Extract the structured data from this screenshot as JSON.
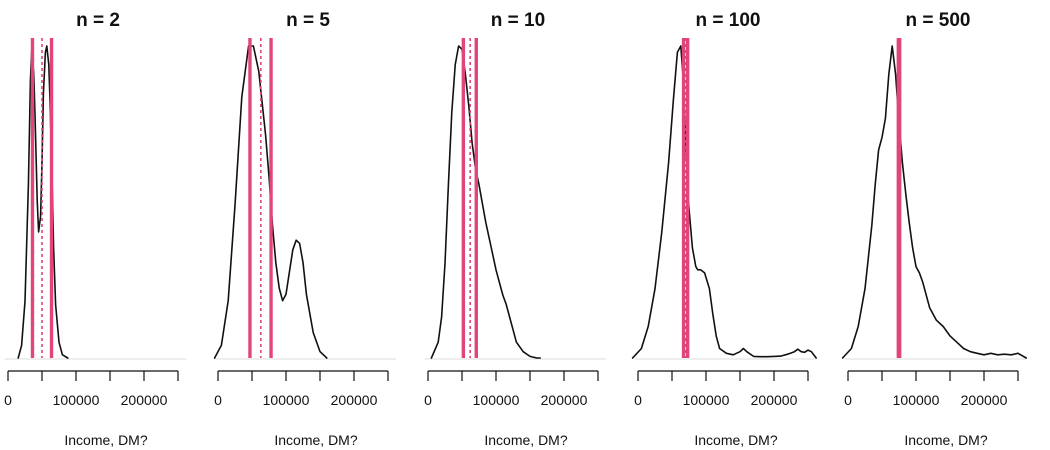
{
  "colors": {
    "interval": "#e0457b",
    "mean": "#e0457b",
    "curve": "#111111"
  },
  "chart_data": [
    {
      "type": "line",
      "title": "n =  2",
      "xlabel": "Income, DM?",
      "xlim": [
        0,
        250000
      ],
      "ticks": [
        0,
        100000,
        200000
      ],
      "tick_labels": [
        "0",
        "100000",
        "200000"
      ],
      "lines": [
        36000,
        50000,
        64000
      ],
      "density": {
        "x": [
          15000,
          20000,
          25000,
          30000,
          33000,
          35000,
          38000,
          40000,
          43000,
          45000,
          48000,
          50000,
          52000,
          55000,
          57000,
          60000,
          62000,
          65000,
          67000,
          70000,
          75000,
          80000,
          88000
        ],
        "y": [
          0.0,
          0.04,
          0.18,
          0.55,
          0.88,
          0.98,
          0.9,
          0.75,
          0.5,
          0.4,
          0.45,
          0.62,
          0.84,
          0.97,
          0.99,
          0.93,
          0.8,
          0.55,
          0.35,
          0.17,
          0.05,
          0.01,
          0.0
        ]
      }
    },
    {
      "type": "line",
      "title": "n =  5",
      "xlabel": "Income, DM?",
      "xlim": [
        0,
        250000
      ],
      "ticks": [
        0,
        100000,
        200000
      ],
      "tick_labels": [
        "0",
        "100000",
        "200000"
      ],
      "lines": [
        47000,
        63000,
        78000
      ],
      "density": {
        "x": [
          -5000,
          5000,
          15000,
          25000,
          35000,
          45000,
          52000,
          60000,
          70000,
          75000,
          80000,
          85000,
          90000,
          95000,
          100000,
          105000,
          110000,
          115000,
          120000,
          125000,
          130000,
          140000,
          150000,
          160000
        ],
        "y": [
          0.0,
          0.04,
          0.18,
          0.48,
          0.82,
          0.98,
          0.98,
          0.9,
          0.7,
          0.57,
          0.42,
          0.3,
          0.22,
          0.18,
          0.2,
          0.27,
          0.34,
          0.37,
          0.36,
          0.3,
          0.2,
          0.08,
          0.02,
          0.0
        ]
      }
    },
    {
      "type": "line",
      "title": "n =  10",
      "xlabel": "Income, DM?",
      "xlim": [
        0,
        250000
      ],
      "ticks": [
        0,
        100000,
        200000
      ],
      "tick_labels": [
        "0",
        "100000",
        "200000"
      ],
      "lines": [
        52000,
        62000,
        71000
      ],
      "density": {
        "x": [
          5000,
          15000,
          20000,
          25000,
          30000,
          35000,
          40000,
          45000,
          50000,
          55000,
          60000,
          65000,
          70000,
          75000,
          80000,
          85000,
          90000,
          95000,
          100000,
          105000,
          110000,
          115000,
          120000,
          125000,
          130000,
          140000,
          150000,
          160000,
          165000
        ],
        "y": [
          0.0,
          0.05,
          0.13,
          0.3,
          0.55,
          0.78,
          0.93,
          0.99,
          0.98,
          0.9,
          0.8,
          0.68,
          0.6,
          0.55,
          0.49,
          0.43,
          0.38,
          0.33,
          0.28,
          0.24,
          0.2,
          0.17,
          0.13,
          0.09,
          0.05,
          0.02,
          0.005,
          0.0,
          0.0
        ]
      }
    },
    {
      "type": "line",
      "title": "n =  100",
      "xlabel": "Income, DM?",
      "xlim": [
        0,
        250000
      ],
      "ticks": [
        0,
        100000,
        200000
      ],
      "tick_labels": [
        "0",
        "100000",
        "200000"
      ],
      "lines": [
        67000,
        70000,
        73000
      ],
      "density": {
        "x": [
          -8000,
          5000,
          15000,
          25000,
          35000,
          45000,
          52000,
          58000,
          63000,
          66000,
          70000,
          74000,
          80000,
          85000,
          88000,
          92000,
          98000,
          105000,
          110000,
          115000,
          120000,
          130000,
          140000,
          150000,
          155000,
          160000,
          170000,
          180000,
          190000,
          200000,
          210000,
          220000,
          230000,
          235000,
          240000,
          245000,
          250000,
          255000,
          262000
        ],
        "y": [
          0.0,
          0.03,
          0.1,
          0.22,
          0.4,
          0.62,
          0.82,
          0.97,
          0.99,
          0.9,
          0.7,
          0.5,
          0.35,
          0.29,
          0.28,
          0.28,
          0.27,
          0.22,
          0.14,
          0.07,
          0.03,
          0.015,
          0.01,
          0.02,
          0.03,
          0.02,
          0.005,
          0.004,
          0.004,
          0.005,
          0.006,
          0.012,
          0.02,
          0.028,
          0.02,
          0.018,
          0.025,
          0.02,
          0.0
        ]
      }
    },
    {
      "type": "line",
      "title": "n =  500",
      "xlabel": "Income, DM?",
      "xlim": [
        0,
        250000
      ],
      "ticks": [
        0,
        100000,
        200000
      ],
      "tick_labels": [
        "0",
        "100000",
        "200000"
      ],
      "lines": [
        74000,
        75000,
        76000
      ],
      "density": {
        "x": [
          -8000,
          5000,
          15000,
          25000,
          35000,
          40000,
          45000,
          50000,
          55000,
          60000,
          65000,
          70000,
          75000,
          80000,
          85000,
          90000,
          95000,
          100000,
          105000,
          110000,
          120000,
          130000,
          140000,
          150000,
          160000,
          170000,
          180000,
          190000,
          200000,
          210000,
          220000,
          230000,
          240000,
          250000,
          262000
        ],
        "y": [
          0.0,
          0.03,
          0.1,
          0.22,
          0.42,
          0.55,
          0.66,
          0.7,
          0.76,
          0.9,
          0.99,
          0.9,
          0.75,
          0.62,
          0.52,
          0.43,
          0.35,
          0.29,
          0.27,
          0.24,
          0.16,
          0.12,
          0.1,
          0.07,
          0.05,
          0.03,
          0.02,
          0.015,
          0.01,
          0.015,
          0.01,
          0.012,
          0.01,
          0.015,
          0.0
        ]
      }
    }
  ]
}
